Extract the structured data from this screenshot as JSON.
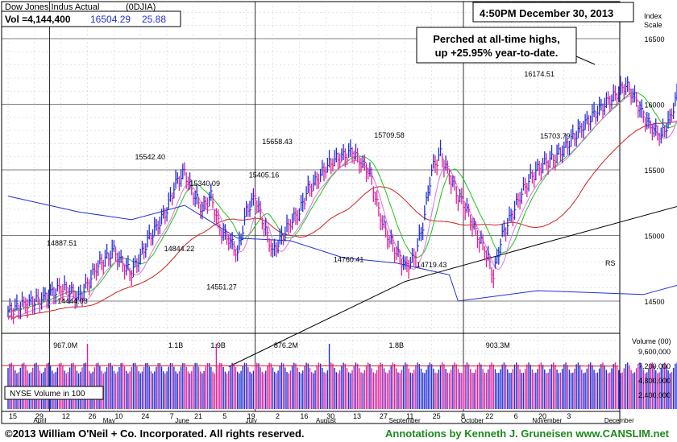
{
  "header": {
    "name": "Dow Jones Indus Actual",
    "symbol": "(0DJIA)",
    "vol_label": "Vol =4,144,400",
    "price": "16504.29",
    "change": "25.88",
    "timestamp": "4:50PM December 30, 2013",
    "index_scale_label": [
      "Index",
      "Scale"
    ],
    "volume_scale_label": "Volume (00)"
  },
  "annotations": {
    "callout": [
      "Perched at all-time highs,",
      "up +25.95% year-to-date."
    ],
    "nyse_label": "NYSE Volume in 100",
    "rs_label": "RS",
    "price_labels": [
      {
        "text": "14887.51",
        "week": 6.1,
        "value": 14887.51
      },
      {
        "text": "14444.03",
        "week": 7.3,
        "value": 14444.03
      },
      {
        "text": "15542.40",
        "week": 16.1,
        "value": 15542.4
      },
      {
        "text": "14844.22",
        "week": 19.4,
        "value": 14844.22
      },
      {
        "text": "15340.09",
        "week": 22.3,
        "value": 15340.09
      },
      {
        "text": "14551.27",
        "week": 24.2,
        "value": 14551.27
      },
      {
        "text": "15658.43",
        "week": 30.5,
        "value": 15658.43
      },
      {
        "text": "15405.16",
        "week": 29.0,
        "value": 15405.16
      },
      {
        "text": "14760.41",
        "week": 38.6,
        "value": 14760.41
      },
      {
        "text": "15709.58",
        "week": 43.2,
        "value": 15709.58
      },
      {
        "text": "14719.43",
        "week": 48.0,
        "value": 14719.43
      },
      {
        "text": "16174.51",
        "week": 60.2,
        "value": 16174.51
      },
      {
        "text": "15703.79",
        "week": 62.0,
        "value": 15703.79
      }
    ],
    "volume_labels": [
      {
        "text": "967.0M",
        "week": 6.5
      },
      {
        "text": "1.1B",
        "week": 19.0
      },
      {
        "text": "1.9B",
        "week": 23.8
      },
      {
        "text": "876.2M",
        "week": 31.5
      },
      {
        "text": "1.8B",
        "week": 44.0
      },
      {
        "text": "903.3M",
        "week": 55.5
      }
    ]
  },
  "footer": {
    "copyright": "©2013 William O'Neil + Co. Incorporated. All rights reserved.",
    "credit": "Annotations by Kenneth J. Gruneisen www.CANSLIM.net"
  },
  "colors": {
    "up": "#1f2fd6",
    "down": "#e0209a",
    "ma50": "#1cc41c",
    "ma10": "#e070e0",
    "ma200": "#d02020",
    "long_ma": "#000000",
    "rs": "#1f2fd6",
    "footer_credit": "#1a8a1a"
  },
  "chart_data": {
    "type": "line",
    "title": "Dow Jones Indus Actual (0DJIA)",
    "ylim": [
      14000,
      16800
    ],
    "yticks": [
      14500,
      15000,
      15500,
      16000,
      16500
    ],
    "volume_ylim": [
      0,
      12000000
    ],
    "volume_ticks": [
      {
        "value": 2400000,
        "label": "2,400,000"
      },
      {
        "value": 4800000,
        "label": "4,800,000"
      },
      {
        "value": 7200000,
        "label": "7,200,000"
      },
      {
        "value": 9600000,
        "label": "9,600,000"
      }
    ],
    "x_ticks": [
      {
        "week": 0,
        "label": "15"
      },
      {
        "week": 3,
        "label": "29"
      },
      {
        "week": 6,
        "label": "12"
      },
      {
        "week": 9,
        "label": "26"
      },
      {
        "week": 12,
        "label": "10"
      },
      {
        "week": 15,
        "label": "24"
      },
      {
        "week": 18,
        "label": "7"
      },
      {
        "week": 21,
        "label": "21"
      },
      {
        "week": 24,
        "label": "5"
      },
      {
        "week": 27,
        "label": "19"
      },
      {
        "week": 30,
        "label": "2"
      },
      {
        "week": 33,
        "label": "16"
      },
      {
        "week": 36,
        "label": "30"
      },
      {
        "week": 39,
        "label": "13"
      },
      {
        "week": 42,
        "label": "27"
      },
      {
        "week": 45,
        "label": "11"
      },
      {
        "week": 48,
        "label": "25"
      },
      {
        "week": 51,
        "label": "8"
      },
      {
        "week": 54,
        "label": "22"
      },
      {
        "week": 57,
        "label": "6"
      },
      {
        "week": 60,
        "label": "20"
      },
      {
        "week": 63,
        "label": "3"
      }
    ],
    "months": [
      {
        "week": 2.3,
        "label": "April"
      },
      {
        "week": 10.6,
        "label": "May"
      },
      {
        "week": 19.2,
        "label": "June"
      },
      {
        "week": 27.6,
        "label": "July"
      },
      {
        "week": 36.0,
        "label": "August"
      },
      {
        "week": 44.7,
        "label": "September"
      },
      {
        "week": 53.3,
        "label": "October"
      },
      {
        "week": 61.8,
        "label": "November"
      },
      {
        "week": 70.4,
        "label": "December"
      }
    ],
    "series": [
      {
        "name": "Price",
        "x": [
          0,
          2,
          4,
          5,
          6,
          7,
          8,
          9,
          10,
          12,
          13,
          14,
          15,
          16,
          17,
          18,
          19,
          20,
          21,
          22,
          23,
          24,
          25,
          26,
          27,
          28,
          29,
          30,
          31,
          32,
          33,
          34,
          35,
          36,
          37,
          38,
          39,
          40,
          41,
          42,
          43,
          44,
          45,
          46,
          47,
          48,
          49,
          50,
          51,
          52,
          53,
          54,
          55,
          56,
          57,
          58,
          59,
          60,
          61,
          62,
          63,
          64,
          65,
          66,
          67,
          68,
          69,
          70,
          71,
          72,
          73,
          74,
          75,
          76,
          77,
          78,
          79
        ],
        "values": [
          14420,
          14480,
          14520,
          14560,
          14600,
          14580,
          14520,
          14620,
          14760,
          14880,
          14780,
          14720,
          14840,
          14980,
          15080,
          15200,
          15400,
          15480,
          15320,
          15200,
          15300,
          15040,
          14980,
          14860,
          15180,
          15300,
          15080,
          14870,
          14980,
          15100,
          15180,
          15350,
          15420,
          15520,
          15580,
          15600,
          15640,
          15560,
          15480,
          15180,
          15000,
          14880,
          14760,
          14820,
          15080,
          15500,
          15620,
          15460,
          15300,
          15200,
          15020,
          14900,
          14700,
          15000,
          15140,
          15300,
          15420,
          15500,
          15560,
          15600,
          15660,
          15740,
          15820,
          15900,
          15960,
          16020,
          16080,
          16150,
          16050,
          15900,
          15820,
          15760,
          15880,
          16120,
          16300,
          16450,
          16504
        ]
      }
    ]
  }
}
